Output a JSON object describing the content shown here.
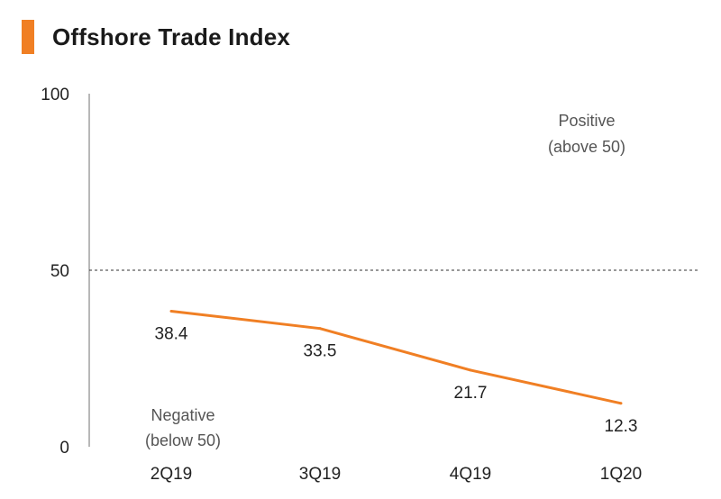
{
  "chart_data": {
    "type": "line",
    "title": "Offshore Trade Index",
    "categories": [
      "2Q19",
      "3Q19",
      "4Q19",
      "1Q20"
    ],
    "series": [
      {
        "name": "Offshore Trade Index",
        "values": [
          38.4,
          33.5,
          21.7,
          12.3
        ]
      }
    ],
    "data_labels": [
      "38.4",
      "33.5",
      "21.7",
      "12.3"
    ],
    "ylim": [
      0,
      100
    ],
    "yticks": [
      0,
      50,
      100
    ],
    "ytick_labels": [
      "0",
      "50",
      "100"
    ],
    "reference_line": {
      "value": 50,
      "style": "dashed"
    },
    "annotations": {
      "positive": {
        "line1": "Positive",
        "line2": "(above 50)"
      },
      "negative": {
        "line1": "Negative",
        "line2": "(below 50)"
      }
    },
    "xlabel": "",
    "ylabel": "",
    "grid": false,
    "colors": {
      "line": "#F07F24",
      "accent": "#F07F24",
      "axis": "#888888"
    }
  }
}
